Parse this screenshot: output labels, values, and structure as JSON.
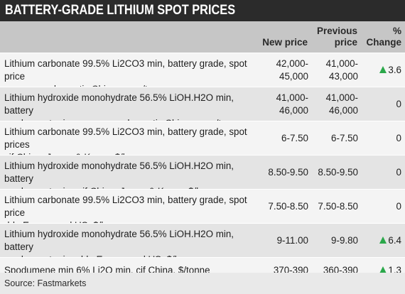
{
  "title": "BATTERY-GRADE LITHIUM SPOT PRICES",
  "columns": {
    "new_price": "New price",
    "previous_price_line1": "Previous",
    "previous_price_line2": "price",
    "pct_line1": "%",
    "pct_line2": "Change"
  },
  "colors": {
    "title_bg": "#2b2b2b",
    "header_bg": "#c6c6c6",
    "up_arrow": "#2aa84a"
  },
  "rows": [
    {
      "desc_line1": "Lithium carbonate 99.5% Li2CO3 min, battery grade, spot price",
      "desc_line2": "range exw domestic China, yuan/tonne",
      "new_line1": "42,000-",
      "new_line2": "45,000",
      "prev_line1": "41,000-",
      "prev_line2": "43,000",
      "change": "3.6",
      "direction": "up"
    },
    {
      "desc_line1": "Lithium hydroxide monohydrate 56.5% LiOH.H2O min, battery",
      "desc_line2": "grade, spot price range exw domestic China, yuan/tonne",
      "new_line1": "41,000-",
      "new_line2": "46,000",
      "prev_line1": "41,000-",
      "prev_line2": "46,000",
      "change": "0",
      "direction": "none"
    },
    {
      "desc_line1": "Lithium carbonate 99.5% Li2CO3 min, battery grade, spot prices",
      "desc_line2": "cif China, Japan & Korea, $/kg",
      "new_line1": "6-7.50",
      "new_line2": "",
      "prev_line1": "6-7.50",
      "prev_line2": "",
      "change": "0",
      "direction": "none"
    },
    {
      "desc_line1": "Lithium hydroxide monohydrate 56.5% LiOH.H2O min, battery",
      "desc_line2": "grade, spot price cif China, Japan & Korea, $/kg",
      "new_line1": "8.50-9.50",
      "new_line2": "",
      "prev_line1": "8.50-9.50",
      "prev_line2": "",
      "change": "0",
      "direction": "none"
    },
    {
      "desc_line1": "Lithium carbonate 99.5% Li2CO3 min, battery grade, spot price",
      "desc_line2": "ddp Europe and US, $/kg",
      "new_line1": "7.50-8.50",
      "new_line2": "",
      "prev_line1": "7.50-8.50",
      "prev_line2": "",
      "change": "0",
      "direction": "none"
    },
    {
      "desc_line1": "Lithium hydroxide monohydrate 56.5% LiOH.H2O min, battery",
      "desc_line2": "grade, spot price ddp Europe and US, $/kg",
      "new_line1": "9-11.00",
      "new_line2": "",
      "prev_line1": "9-9.80",
      "prev_line2": "",
      "change": "6.4",
      "direction": "up"
    },
    {
      "desc_line1": "Spodumene min 6% Li2O min, cif China, $/tonne",
      "desc_line2": "",
      "new_line1": "370-390",
      "new_line2": "",
      "prev_line1": "360-390",
      "prev_line2": "",
      "change": "1.3",
      "direction": "up"
    }
  ],
  "source": "Source: Fastmarkets"
}
